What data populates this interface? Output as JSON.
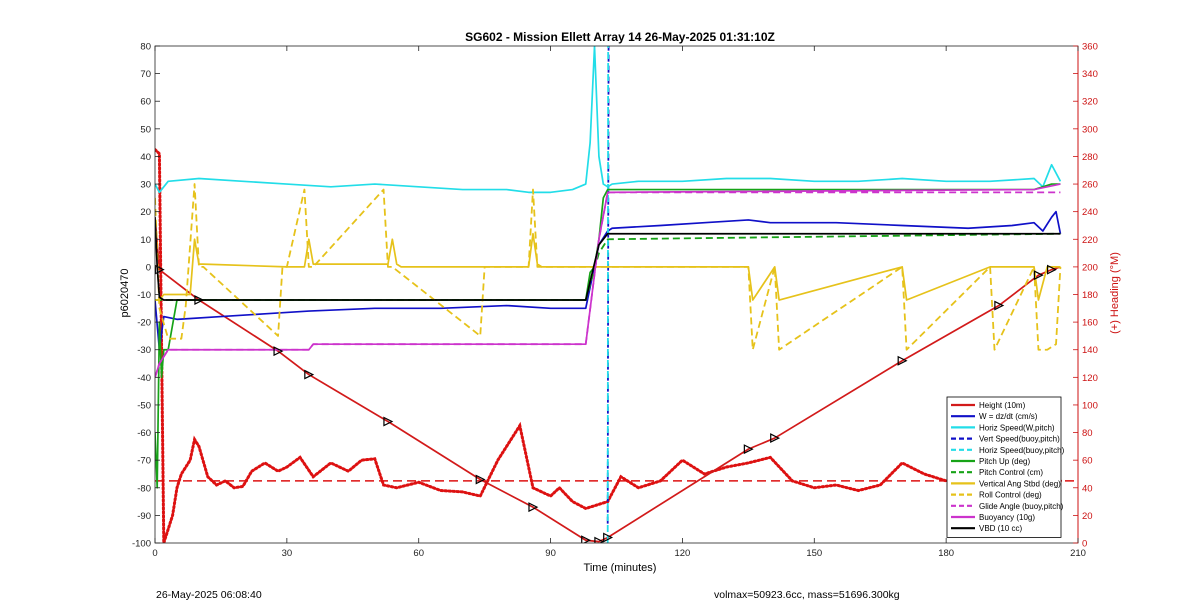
{
  "footer": {
    "left": "26-May-2025 06:08:40",
    "right": "volmax=50923.6cc, mass=51696.300kg"
  },
  "chart_data": {
    "type": "line",
    "title": "SG602 - Mission Ellett Array 14 26-May-2025 01:31:10Z",
    "xlabel": "Time (minutes)",
    "ylabel": "p6020470",
    "y2label": "(+) Heading (°M)",
    "xlim": [
      0,
      210
    ],
    "ylim": [
      -100,
      80
    ],
    "y2lim": [
      0,
      360
    ],
    "xticks": [
      0,
      30,
      60,
      90,
      120,
      150,
      180,
      210
    ],
    "yticks": [
      -100,
      -90,
      -80,
      -70,
      -60,
      -50,
      -40,
      -30,
      -20,
      -10,
      0,
      10,
      20,
      30,
      40,
      50,
      60,
      70,
      80
    ],
    "y2ticks": [
      0,
      20,
      40,
      60,
      80,
      100,
      120,
      140,
      160,
      180,
      200,
      220,
      240,
      260,
      280,
      300,
      320,
      340,
      360
    ],
    "grid": false,
    "legend_position": "bottom-right",
    "colors": {
      "axis_right": "#cc1111",
      "height": "#d21a1a",
      "w": "#1010c8",
      "horiz": "#22dde8",
      "pitch": "#17a317",
      "roll": "#e6c21a",
      "glide": "#cc33cc",
      "buoy": "#cc33cc",
      "vbd": "#000000",
      "heading": "#dd1111"
    },
    "series": [
      {
        "name": "Height (10m)",
        "style": "solid",
        "color_key": "height",
        "x": [
          0,
          1,
          10,
          28,
          35,
          53,
          74,
          86,
          98,
          101,
          103,
          135,
          141,
          170,
          192,
          201,
          204,
          206
        ],
        "y": [
          18,
          -1,
          -12,
          -30.5,
          -39,
          -56,
          -77,
          -87,
          -99,
          -99.5,
          -98,
          -66,
          -62,
          -34,
          -14,
          -3,
          -1,
          0
        ]
      },
      {
        "name": "W = dz/dt (cm/s)",
        "style": "solid",
        "color_key": "w",
        "x": [
          0,
          1,
          2,
          5,
          15,
          25,
          35,
          50,
          65,
          80,
          90,
          98,
          101,
          103,
          104,
          115,
          125,
          135,
          140,
          155,
          170,
          185,
          195,
          200,
          202,
          204,
          205,
          206
        ],
        "y": [
          -12,
          -30,
          -18,
          -19,
          -18,
          -17,
          -16,
          -15,
          -15,
          -14,
          -15,
          -15,
          8,
          13,
          14,
          15,
          16,
          17,
          16,
          16,
          15,
          14,
          15,
          16,
          13,
          18,
          20,
          12
        ]
      },
      {
        "name": "Horiz Speed(W,pitch)",
        "style": "solid",
        "color_key": "horiz",
        "x": [
          0,
          1,
          3,
          10,
          20,
          30,
          40,
          50,
          60,
          70,
          80,
          85,
          90,
          95,
          98,
          99,
          100,
          101,
          102,
          103,
          104,
          110,
          120,
          130,
          140,
          150,
          160,
          170,
          180,
          190,
          200,
          202,
          204,
          206
        ],
        "y": [
          30,
          27,
          31,
          32,
          31,
          30,
          29,
          30,
          29,
          28,
          28,
          27,
          27,
          28,
          30,
          45,
          80,
          40,
          30,
          29,
          30,
          31,
          31,
          32,
          32,
          31,
          31,
          32,
          31,
          31,
          32,
          29,
          37,
          31
        ]
      },
      {
        "name": "Vert Speed(buoy,pitch)",
        "style": "dashed",
        "color_key": "w",
        "x": [
          103,
          103.1,
          103.2
        ],
        "y": [
          -93,
          0,
          80
        ]
      },
      {
        "name": "Horiz Speed(buoy,pitch)",
        "style": "dashed",
        "color_key": "horiz",
        "x": [
          103,
          103.1
        ],
        "y": [
          -100,
          80
        ]
      },
      {
        "name": "Pitch Up (deg)",
        "style": "solid",
        "color_key": "pitch",
        "x": [
          0,
          0.5,
          1,
          1.5,
          2,
          3,
          5,
          98,
          99,
          100,
          101,
          102,
          103,
          104,
          200,
          204,
          206
        ],
        "y": [
          -60,
          -80,
          -20,
          -40,
          -30,
          -30,
          -12,
          -12,
          -2,
          0,
          10,
          25,
          28,
          28,
          28,
          30,
          30
        ]
      },
      {
        "name": "Pitch Control (cm)",
        "style": "dashed",
        "color_key": "pitch",
        "x": [
          0,
          1,
          3,
          98,
          101,
          103,
          206
        ],
        "y": [
          -12,
          -12,
          -12,
          -12,
          5,
          10,
          12
        ]
      },
      {
        "name": "Vertical Ang Stbd (deg)",
        "style": "solid",
        "color_key": "roll",
        "x": [
          0,
          1,
          2,
          8,
          9,
          10,
          11,
          30,
          34,
          35,
          36,
          53,
          54,
          55,
          56,
          74,
          85,
          86,
          87,
          88,
          98,
          101,
          103,
          135,
          136,
          141,
          142,
          170,
          171,
          190,
          200,
          201,
          203,
          205,
          206
        ],
        "y": [
          -12,
          -12,
          -10,
          -10,
          10,
          1,
          1,
          0,
          0,
          10,
          1,
          1,
          10,
          1,
          0,
          0,
          0,
          12,
          1,
          0,
          0,
          0,
          0,
          0,
          -12,
          0,
          -12,
          0,
          -12,
          0,
          0,
          -12,
          0,
          0,
          0
        ]
      },
      {
        "name": "Roll Control (deg)",
        "style": "dashed",
        "color_key": "roll",
        "x": [
          0,
          1,
          3,
          6,
          7,
          9,
          10,
          11,
          28,
          29,
          30,
          34,
          35,
          36,
          52,
          53,
          54,
          74,
          75,
          76,
          85,
          86,
          87,
          98,
          103,
          135,
          136,
          141,
          142,
          170,
          171,
          190,
          191,
          200,
          201,
          203,
          205,
          206
        ],
        "y": [
          25,
          -15,
          -26,
          -26,
          -14,
          30,
          0,
          0,
          -25,
          0,
          0,
          28,
          0,
          0,
          28,
          0,
          0,
          -25,
          0,
          0,
          0,
          28,
          0,
          0,
          0,
          0,
          -30,
          0,
          -30,
          0,
          -30,
          0,
          -30,
          0,
          -30,
          -30,
          -28,
          0
        ]
      },
      {
        "name": "Glide Angle (buoy,pitch)",
        "style": "dashed",
        "color_key": "glide",
        "x": [
          0,
          1,
          3,
          35,
          36,
          98,
          101,
          103,
          206
        ],
        "y": [
          -40,
          -35,
          -30,
          -30,
          -28,
          -28,
          10,
          27,
          27
        ]
      },
      {
        "name": "Buoyancy (10g)",
        "style": "solid",
        "color_key": "buoy",
        "x": [
          0,
          1,
          3,
          35,
          36,
          98,
          101,
          103,
          200,
          203,
          206
        ],
        "y": [
          -40,
          -35,
          -30,
          -30,
          -28,
          -28,
          10,
          27,
          28,
          29,
          30
        ]
      },
      {
        "name": "VBD (10 cc)",
        "style": "solid",
        "color_key": "vbd",
        "x": [
          0,
          0.5,
          1,
          2,
          98,
          101,
          103,
          206
        ],
        "y": [
          18,
          0,
          -11,
          -12,
          -12,
          8,
          12,
          12
        ]
      }
    ],
    "heading_series": {
      "name": "Heading (°M)",
      "axis": "right",
      "style": "dotted",
      "color_key": "heading",
      "x": [
        0,
        1,
        2,
        3,
        4,
        5,
        6,
        7,
        8,
        9,
        10,
        12,
        14,
        16,
        18,
        20,
        22,
        25,
        28,
        30,
        33,
        36,
        40,
        44,
        47,
        50,
        52,
        55,
        60,
        65,
        70,
        74,
        78,
        80,
        83,
        86,
        90,
        92,
        95,
        98,
        103,
        106,
        110,
        115,
        120,
        125,
        130,
        135,
        140,
        145,
        150,
        155,
        160,
        165,
        170,
        175,
        180,
        185,
        190,
        193,
        196,
        200,
        203,
        206
      ],
      "y": [
        285,
        282,
        0,
        10,
        20,
        40,
        50,
        55,
        60,
        75,
        70,
        48,
        42,
        45,
        40,
        41,
        52,
        58,
        52,
        55,
        62,
        48,
        58,
        52,
        60,
        61,
        42,
        40,
        44,
        38,
        37,
        34,
        60,
        70,
        85,
        40,
        34,
        40,
        30,
        25,
        30,
        48,
        40,
        45,
        60,
        50,
        55,
        58,
        62,
        45,
        40,
        42,
        38,
        42,
        58,
        50,
        45,
        48,
        40,
        38,
        42,
        45,
        35,
        45
      ]
    },
    "heading_mean": {
      "axis": "right",
      "value": 45,
      "style": "dashed",
      "color_key": "heading"
    },
    "markers": {
      "x": [
        1,
        10,
        28,
        35,
        53,
        74,
        86,
        98,
        101,
        103,
        135,
        141,
        170,
        192,
        201,
        204
      ],
      "y": [
        -1,
        -12,
        -30.5,
        -39,
        -56,
        -77,
        -87,
        -99,
        -99.5,
        -98,
        -66,
        -62,
        -34,
        -14,
        -3,
        -1
      ]
    }
  }
}
